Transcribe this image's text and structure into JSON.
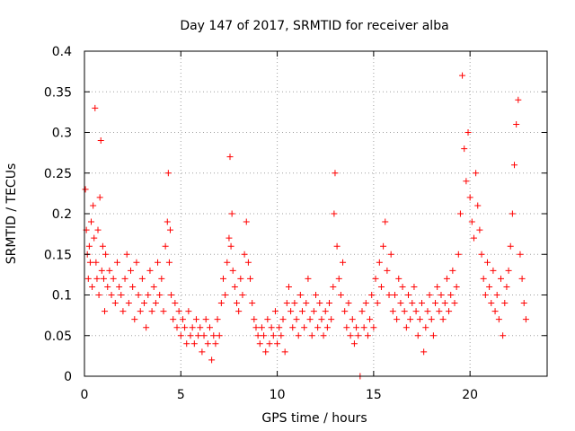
{
  "chart_data": {
    "type": "scatter",
    "title": "Day 147 of 2017, SRMTID for receiver alba",
    "xlabel": "GPS time / hours",
    "ylabel": "SRMTID / TECUs",
    "xlim": [
      0,
      24
    ],
    "ylim": [
      0,
      0.4
    ],
    "xticks": [
      0,
      5,
      10,
      15,
      20
    ],
    "xtick_labels": [
      "0",
      "5",
      "10",
      "15",
      "20"
    ],
    "yticks": [
      0,
      0.05,
      0.1,
      0.15,
      0.2,
      0.25,
      0.3,
      0.35,
      0.4
    ],
    "ytick_labels": [
      "0",
      "0.05",
      "0.1",
      "0.15",
      "0.2",
      "0.25",
      "0.3",
      "0.35",
      "0.4"
    ],
    "grid": true,
    "marker": "+",
    "color": "#ff0000",
    "series": [
      {
        "name": "SRMTID",
        "x": [
          0.05,
          0.1,
          0.15,
          0.2,
          0.25,
          0.3,
          0.35,
          0.4,
          0.45,
          0.5,
          0.55,
          0.6,
          0.65,
          0.7,
          0.75,
          0.8,
          0.85,
          0.9,
          0.95,
          1.0,
          1.05,
          1.1,
          1.2,
          1.3,
          1.4,
          1.5,
          1.6,
          1.7,
          1.8,
          1.9,
          2.0,
          2.1,
          2.2,
          2.3,
          2.4,
          2.5,
          2.6,
          2.7,
          2.8,
          2.9,
          3.0,
          3.1,
          3.2,
          3.3,
          3.4,
          3.5,
          3.6,
          3.7,
          3.8,
          3.9,
          4.0,
          4.1,
          4.2,
          4.3,
          4.35,
          4.4,
          4.45,
          4.5,
          4.6,
          4.7,
          4.8,
          4.9,
          5.0,
          5.1,
          5.2,
          5.3,
          5.4,
          5.5,
          5.6,
          5.7,
          5.8,
          5.9,
          6.0,
          6.1,
          6.2,
          6.3,
          6.4,
          6.5,
          6.6,
          6.7,
          6.8,
          6.9,
          7.0,
          7.1,
          7.2,
          7.3,
          7.4,
          7.5,
          7.55,
          7.6,
          7.65,
          7.7,
          7.8,
          7.9,
          8.0,
          8.1,
          8.2,
          8.3,
          8.4,
          8.5,
          8.6,
          8.7,
          8.8,
          8.9,
          9.0,
          9.1,
          9.2,
          9.3,
          9.4,
          9.5,
          9.6,
          9.7,
          9.8,
          9.9,
          10.0,
          10.1,
          10.2,
          10.3,
          10.4,
          10.5,
          10.6,
          10.7,
          10.8,
          10.9,
          11.0,
          11.1,
          11.2,
          11.3,
          11.4,
          11.5,
          11.6,
          11.7,
          11.8,
          11.9,
          12.0,
          12.1,
          12.2,
          12.3,
          12.4,
          12.5,
          12.6,
          12.7,
          12.8,
          12.9,
          12.95,
          13.0,
          13.1,
          13.2,
          13.3,
          13.4,
          13.5,
          13.6,
          13.7,
          13.8,
          13.9,
          14.0,
          14.1,
          14.2,
          14.3,
          14.4,
          14.5,
          14.6,
          14.7,
          14.8,
          14.9,
          15.0,
          15.1,
          15.2,
          15.3,
          15.4,
          15.5,
          15.6,
          15.7,
          15.8,
          15.9,
          16.0,
          16.1,
          16.2,
          16.3,
          16.4,
          16.5,
          16.6,
          16.7,
          16.8,
          16.9,
          17.0,
          17.1,
          17.2,
          17.3,
          17.4,
          17.5,
          17.6,
          17.7,
          17.8,
          17.9,
          18.0,
          18.1,
          18.2,
          18.3,
          18.4,
          18.5,
          18.6,
          18.7,
          18.8,
          18.9,
          19.0,
          19.1,
          19.2,
          19.3,
          19.4,
          19.5,
          19.6,
          19.7,
          19.8,
          19.9,
          20.0,
          20.1,
          20.2,
          20.3,
          20.4,
          20.5,
          20.6,
          20.7,
          20.8,
          20.9,
          21.0,
          21.1,
          21.2,
          21.3,
          21.4,
          21.5,
          21.6,
          21.7,
          21.8,
          21.9,
          22.0,
          22.1,
          22.2,
          22.3,
          22.4,
          22.5,
          22.6,
          22.7,
          22.8,
          22.9
        ],
        "y": [
          0.23,
          0.18,
          0.15,
          0.12,
          0.16,
          0.14,
          0.19,
          0.11,
          0.21,
          0.17,
          0.33,
          0.14,
          0.12,
          0.18,
          0.1,
          0.22,
          0.29,
          0.13,
          0.16,
          0.12,
          0.08,
          0.15,
          0.11,
          0.13,
          0.1,
          0.12,
          0.09,
          0.14,
          0.11,
          0.1,
          0.08,
          0.12,
          0.15,
          0.09,
          0.13,
          0.11,
          0.07,
          0.14,
          0.1,
          0.08,
          0.12,
          0.09,
          0.06,
          0.1,
          0.13,
          0.08,
          0.11,
          0.09,
          0.14,
          0.1,
          0.12,
          0.08,
          0.16,
          0.19,
          0.25,
          0.14,
          0.18,
          0.1,
          0.07,
          0.09,
          0.06,
          0.08,
          0.05,
          0.07,
          0.06,
          0.04,
          0.08,
          0.05,
          0.06,
          0.04,
          0.07,
          0.05,
          0.06,
          0.03,
          0.05,
          0.07,
          0.04,
          0.06,
          0.02,
          0.05,
          0.04,
          0.07,
          0.05,
          0.09,
          0.12,
          0.1,
          0.14,
          0.17,
          0.27,
          0.16,
          0.2,
          0.13,
          0.11,
          0.09,
          0.08,
          0.12,
          0.1,
          0.15,
          0.19,
          0.14,
          0.12,
          0.09,
          0.07,
          0.06,
          0.05,
          0.04,
          0.06,
          0.05,
          0.03,
          0.07,
          0.04,
          0.06,
          0.05,
          0.08,
          0.04,
          0.06,
          0.05,
          0.07,
          0.03,
          0.09,
          0.11,
          0.08,
          0.06,
          0.09,
          0.07,
          0.05,
          0.1,
          0.08,
          0.06,
          0.09,
          0.12,
          0.07,
          0.05,
          0.08,
          0.1,
          0.06,
          0.09,
          0.07,
          0.05,
          0.08,
          0.06,
          0.09,
          0.07,
          0.11,
          0.2,
          0.25,
          0.16,
          0.12,
          0.1,
          0.14,
          0.08,
          0.06,
          0.09,
          0.05,
          0.07,
          0.04,
          0.06,
          0.05,
          0.0,
          0.08,
          0.06,
          0.09,
          0.05,
          0.07,
          0.1,
          0.06,
          0.12,
          0.09,
          0.14,
          0.11,
          0.16,
          0.19,
          0.13,
          0.1,
          0.15,
          0.08,
          0.1,
          0.07,
          0.12,
          0.09,
          0.11,
          0.08,
          0.06,
          0.1,
          0.07,
          0.09,
          0.11,
          0.08,
          0.05,
          0.07,
          0.09,
          0.03,
          0.06,
          0.08,
          0.1,
          0.07,
          0.05,
          0.09,
          0.11,
          0.08,
          0.1,
          0.07,
          0.09,
          0.12,
          0.08,
          0.1,
          0.13,
          0.09,
          0.11,
          0.15,
          0.2,
          0.37,
          0.28,
          0.24,
          0.3,
          0.22,
          0.19,
          0.17,
          0.25,
          0.21,
          0.18,
          0.15,
          0.12,
          0.1,
          0.14,
          0.11,
          0.09,
          0.13,
          0.08,
          0.1,
          0.07,
          0.12,
          0.05,
          0.09,
          0.11,
          0.13,
          0.16,
          0.2,
          0.26,
          0.31,
          0.34,
          0.15,
          0.12,
          0.09,
          0.07
        ]
      }
    ]
  }
}
